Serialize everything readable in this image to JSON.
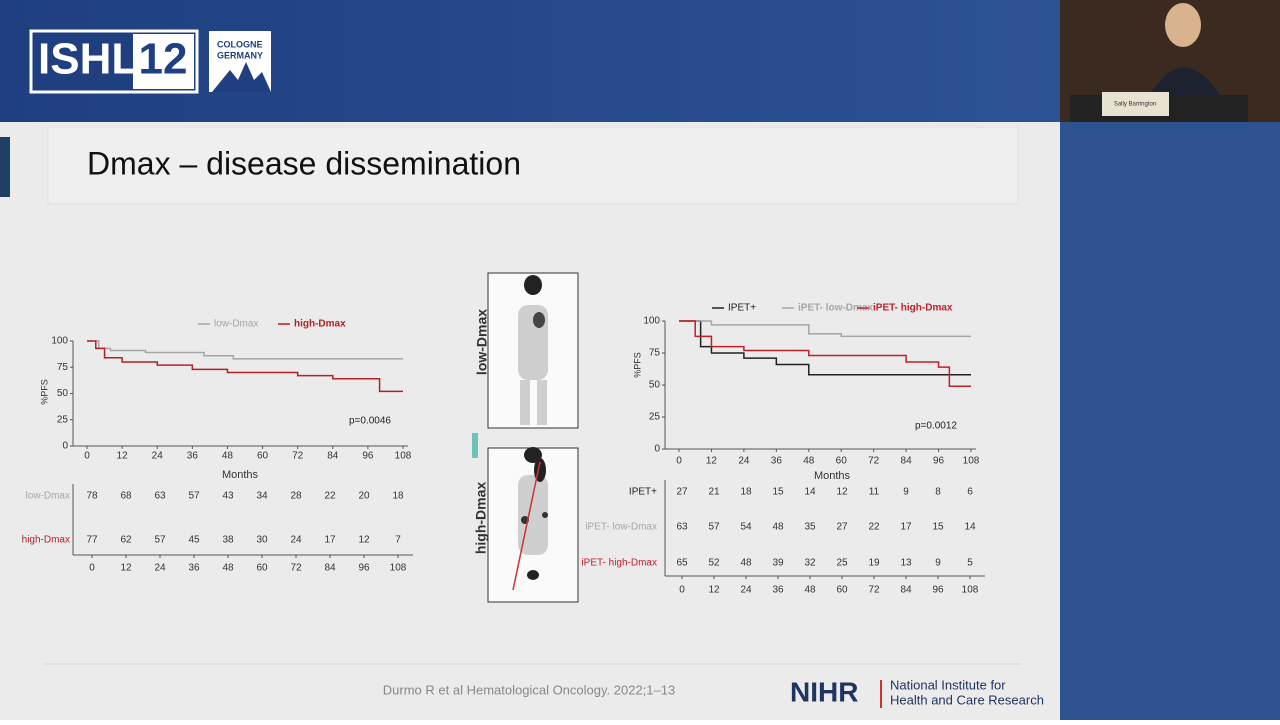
{
  "header": {
    "logo": "ISHL",
    "edition": "12",
    "location": [
      "COLOGNE",
      "GERMANY"
    ],
    "speaker": "Sally Barrington"
  },
  "slide": {
    "title": "Dmax – disease dissemination",
    "images": [
      "low-Dmax",
      "high-Dmax"
    ],
    "citation": "Durmo R et al Hematological Oncology. 2022;1–13",
    "funder": {
      "acronym": "NIHR",
      "name": [
        "National Institute for",
        "Health and Care Research"
      ]
    }
  },
  "chart_data": [
    {
      "type": "line",
      "xlabel": "Months",
      "ylabel": "%PFS",
      "xlim": [
        0,
        108
      ],
      "ylim": [
        0,
        100
      ],
      "xticks": [
        0,
        12,
        24,
        36,
        48,
        60,
        72,
        84,
        96,
        108
      ],
      "yticks": [
        0,
        25,
        50,
        75,
        100
      ],
      "annotation": "p=0.0046",
      "series": [
        {
          "name": "low-Dmax",
          "color": "#a6a6a6",
          "x": [
            0,
            4,
            4,
            8,
            8,
            20,
            20,
            40,
            40,
            50,
            50,
            108
          ],
          "values": [
            100,
            100,
            93,
            93,
            91,
            91,
            89,
            89,
            86,
            86,
            83,
            83
          ],
          "at_risk": [
            78,
            68,
            63,
            57,
            43,
            34,
            28,
            22,
            20,
            18
          ]
        },
        {
          "name": "high-Dmax",
          "color": "#b22222",
          "x": [
            0,
            3,
            3,
            6,
            6,
            12,
            12,
            24,
            24,
            36,
            36,
            48,
            48,
            72,
            72,
            84,
            84,
            100,
            100,
            108
          ],
          "values": [
            100,
            100,
            93,
            93,
            84,
            84,
            80,
            80,
            77,
            77,
            73,
            73,
            70,
            70,
            67,
            67,
            64,
            64,
            52,
            52
          ],
          "at_risk": [
            77,
            62,
            57,
            45,
            38,
            30,
            24,
            17,
            12,
            7
          ]
        }
      ]
    },
    {
      "type": "line",
      "xlabel": "Months",
      "ylabel": "%PFS",
      "xlim": [
        0,
        108
      ],
      "ylim": [
        0,
        100
      ],
      "xticks": [
        0,
        12,
        24,
        36,
        48,
        60,
        72,
        84,
        96,
        108
      ],
      "yticks": [
        0,
        25,
        50,
        75,
        100
      ],
      "annotation": "p=0.0012",
      "series": [
        {
          "name": "IPET+",
          "color": "#222222",
          "x": [
            0,
            8,
            8,
            12,
            12,
            24,
            24,
            36,
            36,
            48,
            48,
            108
          ],
          "values": [
            100,
            100,
            80,
            80,
            75,
            75,
            71,
            71,
            66,
            66,
            58,
            58
          ],
          "at_risk": [
            27,
            21,
            18,
            15,
            14,
            12,
            11,
            9,
            8,
            6
          ]
        },
        {
          "name": "iPET- low-Dmax",
          "color": "#a6a6a6",
          "x": [
            0,
            12,
            12,
            48,
            48,
            60,
            60,
            108
          ],
          "values": [
            100,
            100,
            97,
            97,
            90,
            90,
            88,
            88
          ],
          "at_risk": [
            63,
            57,
            54,
            48,
            35,
            27,
            22,
            17,
            15,
            14
          ]
        },
        {
          "name": "iPET- high-Dmax",
          "color": "#c0202a",
          "x": [
            0,
            6,
            6,
            12,
            12,
            24,
            24,
            48,
            48,
            84,
            84,
            96,
            96,
            100,
            100,
            108
          ],
          "values": [
            100,
            100,
            88,
            88,
            80,
            80,
            77,
            77,
            73,
            73,
            68,
            68,
            64,
            64,
            49,
            49
          ],
          "at_risk": [
            65,
            52,
            48,
            39,
            32,
            25,
            19,
            13,
            9,
            5
          ]
        }
      ]
    }
  ]
}
